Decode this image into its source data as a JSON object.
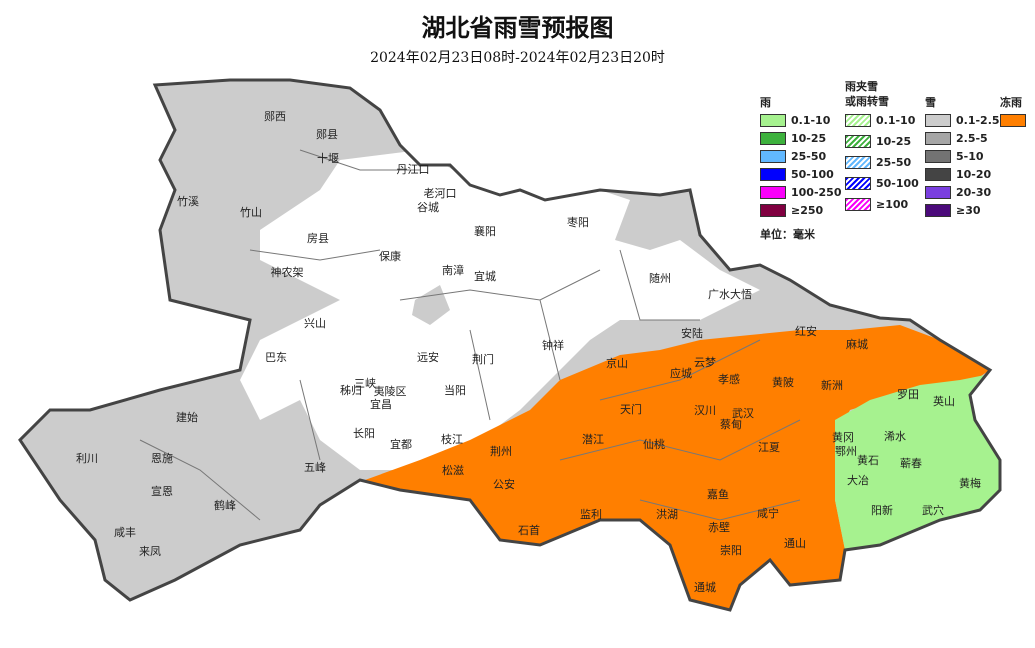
{
  "title": "湖北省雨雪预报图",
  "subtitle": "2024年02月23日08时-2024年02月23日20时",
  "legend": {
    "rain": {
      "label": "雨",
      "items": [
        {
          "label": "0.1-10",
          "color": "#a6f28f"
        },
        {
          "label": "10-25",
          "color": "#3db13d"
        },
        {
          "label": "25-50",
          "color": "#61b8ff"
        },
        {
          "label": "50-100",
          "color": "#0000fe"
        },
        {
          "label": "100-250",
          "color": "#fa00fa"
        },
        {
          "label": "≥250",
          "color": "#800040"
        }
      ]
    },
    "mixed": {
      "label_line1": "雨夹雪",
      "label_line2": "或雨转雪",
      "items": [
        {
          "label": "0.1-10",
          "color": "#a6f28f"
        },
        {
          "label": "10-25",
          "color": "#3db13d"
        },
        {
          "label": "25-50",
          "color": "#61b8ff"
        },
        {
          "label": "50-100",
          "color": "#0000fe"
        },
        {
          "label": "≥100",
          "color": "#fa00fa"
        }
      ]
    },
    "snow": {
      "label": "雪",
      "items": [
        {
          "label": "0.1-2.5",
          "color": "#cccccc"
        },
        {
          "label": "2.5-5",
          "color": "#a6a6a6"
        },
        {
          "label": "5-10",
          "color": "#737373"
        },
        {
          "label": "10-20",
          "color": "#444444"
        },
        {
          "label": "20-30",
          "color": "#7a3fe0"
        },
        {
          "label": "≥30",
          "color": "#4b0a7a"
        }
      ]
    },
    "freezing_rain": {
      "label": "冻雨",
      "color": "#ff7f00"
    },
    "unit": "单位：毫米"
  },
  "colors": {
    "snow_light": "#cccccc",
    "freezing_rain": "#ff7f00",
    "rain_light": "#a6f28f",
    "no_precip": "#ffffff",
    "border": "#444444"
  },
  "cities": [
    "郧西",
    "郧县",
    "十堰",
    "丹江口",
    "老河口",
    "谷城",
    "竹溪",
    "竹山",
    "房县",
    "保康",
    "南漳",
    "襄阳",
    "宜城",
    "枣阳",
    "随州",
    "广水大悟",
    "神农架",
    "兴山",
    "安陆",
    "钟祥",
    "荆门",
    "京山",
    "巴东",
    "远安",
    "当阳",
    "秭归",
    "三峡",
    "夷陵区",
    "宜昌",
    "长阳",
    "宜都",
    "枝江",
    "云梦",
    "应城",
    "孝感",
    "红安",
    "麻城",
    "黄陂",
    "新洲",
    "罗田",
    "英山",
    "天门",
    "汉川",
    "武汉",
    "蔡甸",
    "建始",
    "利川",
    "恩施",
    "宣恩",
    "鹤峰",
    "咸丰",
    "来凤",
    "五峰",
    "松滋",
    "荆州",
    "公安",
    "潜江",
    "仙桃",
    "江夏",
    "黄冈",
    "鄂州",
    "黄石",
    "大冶",
    "浠水",
    "蕲春",
    "黄梅",
    "阳新",
    "武穴",
    "嘉鱼",
    "监利",
    "洪湖",
    "赤壁",
    "咸宁",
    "石首",
    "崇阳",
    "通山",
    "通城"
  ]
}
